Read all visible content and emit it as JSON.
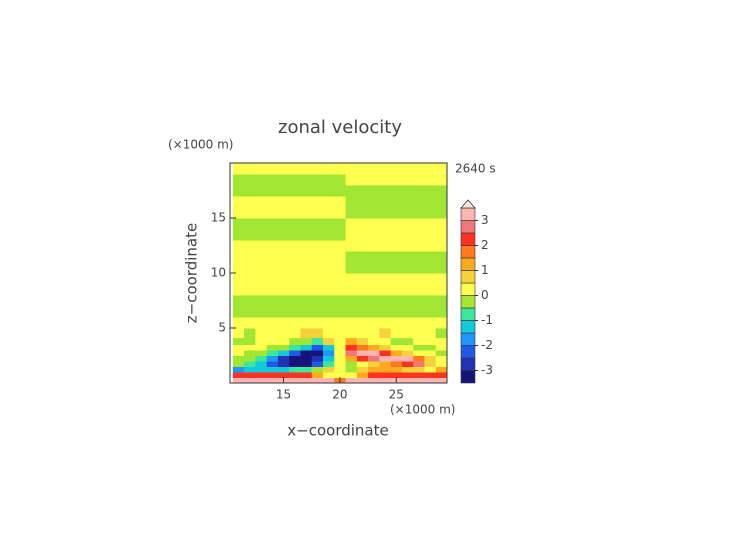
{
  "chart_data": {
    "type": "contour",
    "title": "zonal velocity",
    "time_label": "2640 s",
    "x_label": "x−coordinate",
    "y_label": "z−coordinate",
    "x_unit": "(×1000 m)",
    "y_unit": "(×1000 m)",
    "xlim": [
      10.25,
      29.5
    ],
    "ylim": [
      0,
      20
    ],
    "xticks": [
      15,
      20,
      25
    ],
    "yticks": [
      5,
      10,
      15
    ],
    "x": [
      11,
      12,
      13,
      14,
      15,
      16,
      17,
      18,
      19,
      20,
      21,
      22,
      23,
      24,
      25,
      26,
      27,
      28,
      29
    ],
    "y": [
      0.25,
      0.75,
      1.25,
      1.75,
      2.25,
      2.75,
      3.25,
      3.75,
      4.5,
      5.5,
      6.5,
      7.5,
      8.5,
      9.5,
      10.5,
      11.5,
      12.5,
      13.5,
      14.5,
      15.5,
      16.5,
      17.5,
      18.5,
      19.5
    ],
    "z": [
      [
        3.2,
        3.2,
        3.2,
        3.2,
        3.2,
        3.2,
        3.2,
        3.2,
        3.2,
        1.5,
        3.2,
        3.2,
        3.2,
        3.2,
        3.2,
        3.2,
        3.2,
        3.2,
        3.2
      ],
      [
        2.2,
        2.2,
        2.2,
        2.2,
        2.2,
        2.2,
        2.2,
        1.2,
        0.3,
        0.2,
        0.3,
        1.2,
        2.2,
        2.2,
        2.2,
        2.2,
        2.2,
        2.2,
        2.2
      ],
      [
        -1.8,
        -1.2,
        -1.2,
        -1.2,
        -1.2,
        -1.0,
        -0.6,
        -0.3,
        0.6,
        0.3,
        -0.3,
        0.6,
        1.2,
        1.2,
        1.2,
        0.6,
        0.6,
        0.3,
        1.2
      ],
      [
        -0.3,
        -0.8,
        -1.3,
        -2.2,
        -2.8,
        -3.2,
        -3.2,
        -2.2,
        -0.7,
        0.2,
        -0.3,
        0.3,
        0.8,
        1.3,
        1.8,
        2.3,
        2.8,
        0.8,
        0.3
      ],
      [
        -0.3,
        -0.3,
        -0.8,
        -1.8,
        -2.8,
        -3.3,
        -3.3,
        -2.8,
        -1.3,
        0.2,
        1.3,
        2.3,
        2.8,
        3.2,
        3.2,
        3.2,
        1.8,
        0.6,
        0.3
      ],
      [
        0.3,
        -0.3,
        -0.3,
        -0.8,
        -1.3,
        -2.3,
        -3.2,
        -3.2,
        -1.8,
        0.2,
        2.8,
        3.2,
        3.2,
        2.3,
        1.3,
        0.8,
        0.3,
        0.3,
        -0.3
      ],
      [
        0.3,
        0.3,
        0.3,
        -0.3,
        -0.3,
        -0.8,
        -1.3,
        -2.3,
        -1.3,
        0.3,
        2.3,
        1.8,
        1.3,
        0.8,
        0.3,
        0.3,
        -0.3,
        -0.3,
        0.3
      ],
      [
        -0.3,
        -0.3,
        0.3,
        0.3,
        0.3,
        -0.3,
        -0.3,
        -0.8,
        0.6,
        0.2,
        1.2,
        0.6,
        0.3,
        0.3,
        -0.3,
        -0.3,
        0.3,
        0.3,
        0.3
      ],
      [
        0.2,
        -0.2,
        0.2,
        0.2,
        0.2,
        0.2,
        0.6,
        0.6,
        0.2,
        0.2,
        0.2,
        0.2,
        0.2,
        0.6,
        0.2,
        0.2,
        0.2,
        0.2,
        -0.2
      ],
      [
        0.2,
        0.2,
        0.2,
        0.2,
        0.2,
        0.2,
        0.2,
        0.2,
        0.2,
        0.2,
        0.2,
        0.2,
        0.2,
        0.2,
        0.2,
        0.2,
        0.2,
        0.2,
        0.2
      ],
      [
        -0.2,
        -0.2,
        -0.2,
        -0.2,
        -0.2,
        -0.2,
        -0.2,
        -0.2,
        -0.2,
        -0.2,
        -0.2,
        -0.2,
        -0.2,
        -0.2,
        -0.2,
        -0.2,
        -0.2,
        -0.2,
        -0.2
      ],
      [
        -0.2,
        -0.2,
        -0.2,
        -0.2,
        -0.2,
        -0.2,
        -0.2,
        -0.2,
        -0.2,
        -0.2,
        -0.2,
        -0.2,
        -0.2,
        -0.2,
        -0.2,
        -0.2,
        -0.2,
        -0.2,
        -0.2
      ],
      [
        0.2,
        0.2,
        0.2,
        0.2,
        0.2,
        0.2,
        0.2,
        0.2,
        0.2,
        0.2,
        0.2,
        0.2,
        0.2,
        0.2,
        0.2,
        0.2,
        0.2,
        0.2,
        0.2
      ],
      [
        0.2,
        0.2,
        0.2,
        0.2,
        0.2,
        0.2,
        0.2,
        0.2,
        0.2,
        0.2,
        0.2,
        0.2,
        0.2,
        0.2,
        0.2,
        0.2,
        0.2,
        0.2,
        0.2
      ],
      [
        0.2,
        0.2,
        0.2,
        0.2,
        0.2,
        0.2,
        0.2,
        0.2,
        0.2,
        0.2,
        -0.2,
        -0.2,
        -0.2,
        -0.2,
        -0.2,
        -0.2,
        -0.2,
        -0.2,
        -0.2
      ],
      [
        0.2,
        0.2,
        0.2,
        0.2,
        0.2,
        0.2,
        0.2,
        0.2,
        0.2,
        0.2,
        -0.2,
        -0.2,
        -0.2,
        -0.2,
        -0.2,
        -0.2,
        -0.2,
        -0.2,
        -0.2
      ],
      [
        0.2,
        0.2,
        0.2,
        0.2,
        0.2,
        0.2,
        0.2,
        0.2,
        0.2,
        0.2,
        0.2,
        0.2,
        0.2,
        0.2,
        0.2,
        0.2,
        0.2,
        0.2,
        0.2
      ],
      [
        -0.2,
        -0.2,
        -0.2,
        -0.2,
        -0.2,
        -0.2,
        -0.2,
        -0.2,
        -0.2,
        -0.2,
        0.2,
        0.2,
        0.2,
        0.2,
        0.2,
        0.2,
        0.2,
        0.2,
        0.2
      ],
      [
        -0.2,
        -0.2,
        -0.2,
        -0.2,
        -0.2,
        -0.2,
        -0.2,
        -0.2,
        -0.2,
        -0.2,
        0.2,
        0.2,
        0.2,
        0.2,
        0.2,
        0.2,
        0.2,
        0.2,
        0.2
      ],
      [
        0.2,
        0.2,
        0.2,
        0.2,
        0.2,
        0.2,
        0.2,
        0.2,
        0.2,
        0.2,
        -0.2,
        -0.2,
        -0.2,
        -0.2,
        -0.2,
        -0.2,
        -0.2,
        -0.2,
        -0.2
      ],
      [
        0.2,
        0.2,
        0.2,
        0.2,
        0.2,
        0.2,
        0.2,
        0.2,
        0.2,
        0.2,
        -0.2,
        -0.2,
        -0.2,
        -0.2,
        -0.2,
        -0.2,
        -0.2,
        -0.2,
        -0.2
      ],
      [
        -0.2,
        -0.2,
        -0.2,
        -0.2,
        -0.2,
        -0.2,
        -0.2,
        -0.2,
        -0.2,
        -0.2,
        -0.2,
        -0.2,
        -0.2,
        -0.2,
        -0.2,
        -0.2,
        -0.2,
        -0.2,
        -0.2
      ],
      [
        -0.2,
        -0.2,
        -0.2,
        -0.2,
        -0.2,
        -0.2,
        -0.2,
        -0.2,
        -0.2,
        -0.2,
        0.2,
        0.2,
        0.2,
        0.2,
        0.2,
        0.2,
        0.2,
        0.2,
        0.2
      ],
      [
        0.2,
        0.2,
        0.2,
        0.2,
        0.2,
        0.2,
        0.2,
        0.2,
        0.2,
        0.2,
        0.2,
        0.2,
        0.2,
        0.2,
        0.2,
        0.2,
        0.2,
        0.2,
        0.2
      ]
    ],
    "levels": [
      -3.5,
      -3,
      -2.5,
      -2,
      -1.5,
      -1,
      -0.5,
      0,
      0.5,
      1,
      1.5,
      2,
      2.5,
      3,
      3.5
    ],
    "colors": [
      "#14147a",
      "#2232b4",
      "#1e5ae6",
      "#1e96ff",
      "#14c8dc",
      "#3ce69b",
      "#a0e632",
      "#ffff50",
      "#f5d23c",
      "#ffaa1e",
      "#ff7a1e",
      "#ff3220",
      "#f07878",
      "#ffb4b4"
    ],
    "extend_color": "#ffe4e4",
    "colorbar_ticks": [
      -3,
      -2,
      -1,
      0,
      1,
      2,
      3
    ]
  }
}
